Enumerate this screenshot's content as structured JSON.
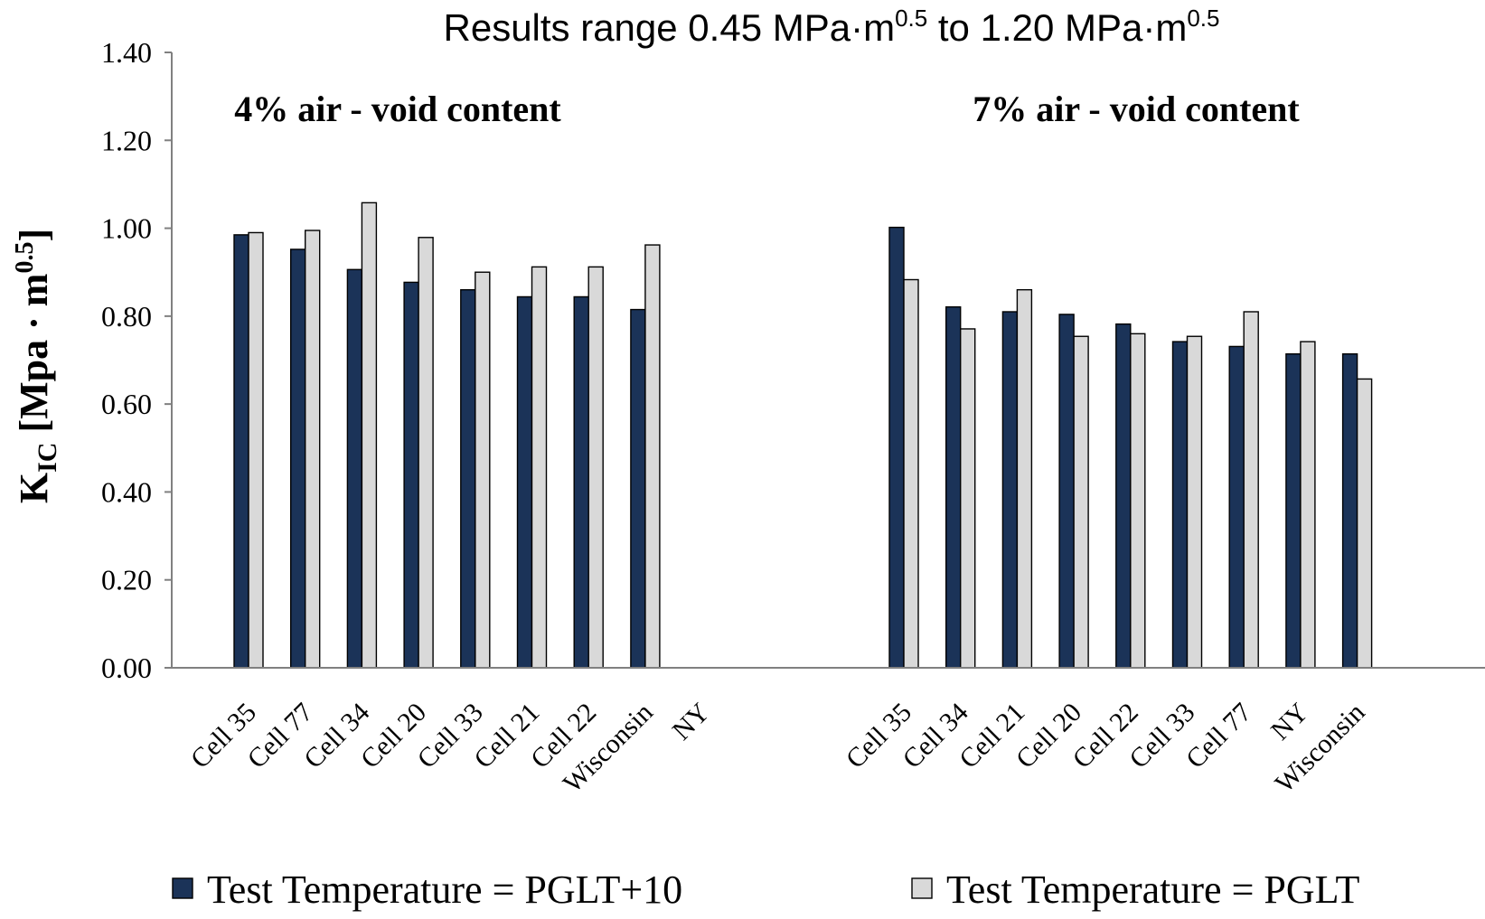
{
  "chart_data": {
    "type": "bar",
    "title": "Results range 0.45 MPa·m",
    "title_sup1": "0.5",
    "title_mid": " to 1.20 MPa·m",
    "title_sup2": "0.5",
    "ylabel_main": "K",
    "ylabel_sub": "IC",
    "ylabel_unit": " [Mpa · m",
    "ylabel_sup": "0.5",
    "ylabel_close": "]",
    "ylim": [
      0,
      1.4
    ],
    "yticks": [
      "0.00",
      "0.20",
      "0.40",
      "0.60",
      "0.80",
      "1.00",
      "1.20",
      "1.40"
    ],
    "grid": false,
    "legend_position": "bottom",
    "colors": {
      "PGLT+10": "#1b3358",
      "PGLT": "#d9d9d9",
      "axis": "#808080"
    },
    "groups": [
      {
        "label": "4% air - void content",
        "categories": [
          "Cell 35",
          "Cell 77",
          "Cell 34",
          "Cell 20",
          "Cell 33",
          "Cell 21",
          "Cell 22",
          "Wisconsin",
          "NY"
        ],
        "series": [
          {
            "name": "Test Temperature = PGLT+10",
            "values": [
              0.985,
              0.952,
              0.906,
              0.877,
              0.86,
              0.844,
              0.844,
              0.815,
              null
            ]
          },
          {
            "name": "Test Temperature = PGLT",
            "values": [
              0.99,
              0.995,
              1.058,
              0.979,
              0.9,
              0.912,
              0.912,
              0.962,
              null
            ]
          }
        ]
      },
      {
        "label": "7% air - void content",
        "categories": [
          "Cell 35",
          "Cell 34",
          "Cell 21",
          "Cell 20",
          "Cell 22",
          "Cell 33",
          "Cell 77",
          "NY",
          "Wisconsin"
        ],
        "series": [
          {
            "name": "Test Temperature = PGLT+10",
            "values": [
              1.002,
              0.821,
              0.81,
              0.804,
              0.782,
              0.742,
              0.731,
              0.714,
              0.714
            ]
          },
          {
            "name": "Test Temperature = PGLT",
            "values": [
              0.883,
              0.771,
              0.86,
              0.754,
              0.76,
              0.754,
              0.81,
              0.742,
              0.657
            ]
          }
        ]
      }
    ],
    "legend": [
      {
        "key": "PGLT+10",
        "label": "Test Temperature = PGLT+10"
      },
      {
        "key": "PGLT",
        "label": "Test Temperature = PGLT"
      }
    ]
  }
}
